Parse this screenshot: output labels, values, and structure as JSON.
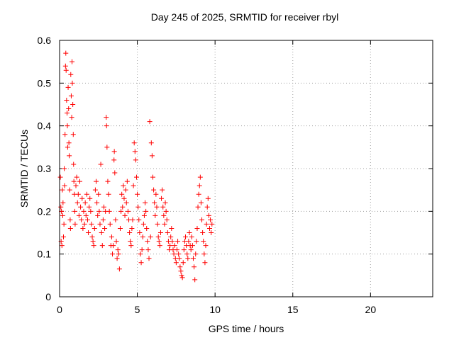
{
  "chart_data": {
    "type": "scatter",
    "title": "Day 245 of 2025, SRMTID for receiver rbyl",
    "xlabel": "GPS time / hours",
    "ylabel": "SRMTID / TECUs",
    "xlim": [
      0,
      24
    ],
    "ylim": [
      0,
      0.6
    ],
    "xticks": [
      0,
      5,
      10,
      15,
      20
    ],
    "yticks": [
      0,
      0.1,
      0.2,
      0.3,
      0.4,
      0.5,
      0.6
    ],
    "grid": true,
    "marker": "+",
    "series": [
      {
        "name": "SRMTID",
        "color": "#ff0000",
        "points": [
          [
            0.05,
            0.28
          ],
          [
            0.08,
            0.21
          ],
          [
            0.1,
            0.13
          ],
          [
            0.12,
            0.2
          ],
          [
            0.15,
            0.12
          ],
          [
            0.18,
            0.25
          ],
          [
            0.2,
            0.19
          ],
          [
            0.22,
            0.22
          ],
          [
            0.25,
            0.14
          ],
          [
            0.28,
            0.17
          ],
          [
            0.3,
            0.3
          ],
          [
            0.32,
            0.26
          ],
          [
            0.35,
            0.38
          ],
          [
            0.38,
            0.54
          ],
          [
            0.4,
            0.57
          ],
          [
            0.42,
            0.53
          ],
          [
            0.45,
            0.46
          ],
          [
            0.48,
            0.43
          ],
          [
            0.5,
            0.4
          ],
          [
            0.52,
            0.35
          ],
          [
            0.55,
            0.49
          ],
          [
            0.58,
            0.44
          ],
          [
            0.6,
            0.36
          ],
          [
            0.62,
            0.33
          ],
          [
            0.65,
            0.25
          ],
          [
            0.68,
            0.18
          ],
          [
            0.7,
            0.16
          ],
          [
            0.72,
            0.52
          ],
          [
            0.75,
            0.47
          ],
          [
            0.78,
            0.42
          ],
          [
            0.8,
            0.55
          ],
          [
            0.82,
            0.5
          ],
          [
            0.85,
            0.45
          ],
          [
            0.88,
            0.38
          ],
          [
            0.9,
            0.31
          ],
          [
            0.92,
            0.27
          ],
          [
            0.95,
            0.24
          ],
          [
            0.98,
            0.2
          ],
          [
            1.0,
            0.17
          ],
          [
            1.05,
            0.26
          ],
          [
            1.1,
            0.28
          ],
          [
            1.15,
            0.22
          ],
          [
            1.2,
            0.24
          ],
          [
            1.25,
            0.19
          ],
          [
            1.3,
            0.27
          ],
          [
            1.35,
            0.21
          ],
          [
            1.4,
            0.18
          ],
          [
            1.45,
            0.23
          ],
          [
            1.5,
            0.16
          ],
          [
            1.55,
            0.2
          ],
          [
            1.6,
            0.17
          ],
          [
            1.65,
            0.22
          ],
          [
            1.7,
            0.19
          ],
          [
            1.75,
            0.24
          ],
          [
            1.8,
            0.18
          ],
          [
            1.85,
            0.15
          ],
          [
            1.9,
            0.21
          ],
          [
            1.95,
            0.23
          ],
          [
            2.0,
            0.2
          ],
          [
            2.05,
            0.17
          ],
          [
            2.1,
            0.14
          ],
          [
            2.15,
            0.13
          ],
          [
            2.2,
            0.12
          ],
          [
            2.25,
            0.16
          ],
          [
            2.3,
            0.25
          ],
          [
            2.35,
            0.27
          ],
          [
            2.4,
            0.22
          ],
          [
            2.45,
            0.19
          ],
          [
            2.5,
            0.24
          ],
          [
            2.55,
            0.2
          ],
          [
            2.6,
            0.17
          ],
          [
            2.65,
            0.31
          ],
          [
            2.7,
            0.15
          ],
          [
            2.75,
            0.12
          ],
          [
            2.8,
            0.18
          ],
          [
            2.85,
            0.21
          ],
          [
            2.9,
            0.16
          ],
          [
            2.95,
            0.2
          ],
          [
            3.0,
            0.42
          ],
          [
            3.02,
            0.4
          ],
          [
            3.05,
            0.35
          ],
          [
            3.1,
            0.27
          ],
          [
            3.15,
            0.24
          ],
          [
            3.2,
            0.2
          ],
          [
            3.25,
            0.17
          ],
          [
            3.3,
            0.12
          ],
          [
            3.35,
            0.14
          ],
          [
            3.4,
            0.1
          ],
          [
            3.45,
            0.12
          ],
          [
            3.5,
            0.32
          ],
          [
            3.52,
            0.34
          ],
          [
            3.55,
            0.29
          ],
          [
            3.6,
            0.18
          ],
          [
            3.65,
            0.13
          ],
          [
            3.7,
            0.09
          ],
          [
            3.75,
            0.11
          ],
          [
            3.8,
            0.1
          ],
          [
            3.85,
            0.065
          ],
          [
            3.9,
            0.16
          ],
          [
            3.95,
            0.2
          ],
          [
            4.0,
            0.24
          ],
          [
            4.05,
            0.21
          ],
          [
            4.1,
            0.26
          ],
          [
            4.15,
            0.23
          ],
          [
            4.2,
            0.19
          ],
          [
            4.25,
            0.25
          ],
          [
            4.3,
            0.22
          ],
          [
            4.35,
            0.27
          ],
          [
            4.4,
            0.2
          ],
          [
            4.45,
            0.18
          ],
          [
            4.5,
            0.15
          ],
          [
            4.55,
            0.13
          ],
          [
            4.6,
            0.12
          ],
          [
            4.65,
            0.16
          ],
          [
            4.7,
            0.18
          ],
          [
            4.75,
            0.26
          ],
          [
            4.8,
            0.36
          ],
          [
            4.85,
            0.34
          ],
          [
            4.9,
            0.32
          ],
          [
            4.95,
            0.28
          ],
          [
            5.0,
            0.24
          ],
          [
            5.05,
            0.21
          ],
          [
            5.1,
            0.18
          ],
          [
            5.15,
            0.15
          ],
          [
            5.2,
            0.1
          ],
          [
            5.25,
            0.08
          ],
          [
            5.3,
            0.11
          ],
          [
            5.35,
            0.14
          ],
          [
            5.4,
            0.17
          ],
          [
            5.45,
            0.19
          ],
          [
            5.5,
            0.22
          ],
          [
            5.55,
            0.2
          ],
          [
            5.6,
            0.16
          ],
          [
            5.65,
            0.13
          ],
          [
            5.7,
            0.11
          ],
          [
            5.75,
            0.09
          ],
          [
            5.8,
            0.41
          ],
          [
            5.85,
            0.14
          ],
          [
            5.9,
            0.36
          ],
          [
            5.95,
            0.33
          ],
          [
            6.0,
            0.28
          ],
          [
            6.05,
            0.25
          ],
          [
            6.1,
            0.22
          ],
          [
            6.15,
            0.19
          ],
          [
            6.2,
            0.24
          ],
          [
            6.25,
            0.21
          ],
          [
            6.3,
            0.17
          ],
          [
            6.35,
            0.14
          ],
          [
            6.4,
            0.13
          ],
          [
            6.45,
            0.12
          ],
          [
            6.5,
            0.15
          ],
          [
            6.55,
            0.23
          ],
          [
            6.6,
            0.25
          ],
          [
            6.65,
            0.21
          ],
          [
            6.7,
            0.19
          ],
          [
            6.75,
            0.17
          ],
          [
            6.8,
            0.22
          ],
          [
            6.85,
            0.2
          ],
          [
            6.9,
            0.18
          ],
          [
            6.95,
            0.15
          ],
          [
            7.0,
            0.13
          ],
          [
            7.05,
            0.11
          ],
          [
            7.1,
            0.12
          ],
          [
            7.15,
            0.14
          ],
          [
            7.2,
            0.16
          ],
          [
            7.25,
            0.13
          ],
          [
            7.3,
            0.11
          ],
          [
            7.35,
            0.1
          ],
          [
            7.4,
            0.12
          ],
          [
            7.45,
            0.09
          ],
          [
            7.5,
            0.08
          ],
          [
            7.55,
            0.11
          ],
          [
            7.6,
            0.13
          ],
          [
            7.65,
            0.1
          ],
          [
            7.7,
            0.09
          ],
          [
            7.75,
            0.07
          ],
          [
            7.8,
            0.06
          ],
          [
            7.85,
            0.05
          ],
          [
            7.9,
            0.045
          ],
          [
            7.95,
            0.08
          ],
          [
            8.0,
            0.11
          ],
          [
            8.05,
            0.13
          ],
          [
            8.1,
            0.14
          ],
          [
            8.15,
            0.12
          ],
          [
            8.2,
            0.1
          ],
          [
            8.25,
            0.09
          ],
          [
            8.3,
            0.13
          ],
          [
            8.35,
            0.15
          ],
          [
            8.4,
            0.12
          ],
          [
            8.45,
            0.11
          ],
          [
            8.5,
            0.14
          ],
          [
            8.55,
            0.12
          ],
          [
            8.6,
            0.09
          ],
          [
            8.65,
            0.07
          ],
          [
            8.7,
            0.04
          ],
          [
            8.75,
            0.1
          ],
          [
            8.8,
            0.13
          ],
          [
            8.85,
            0.16
          ],
          [
            8.9,
            0.21
          ],
          [
            8.95,
            0.24
          ],
          [
            9.0,
            0.26
          ],
          [
            9.05,
            0.28
          ],
          [
            9.1,
            0.22
          ],
          [
            9.15,
            0.18
          ],
          [
            9.2,
            0.15
          ],
          [
            9.25,
            0.13
          ],
          [
            9.3,
            0.1
          ],
          [
            9.35,
            0.08
          ],
          [
            9.4,
            0.12
          ],
          [
            9.45,
            0.17
          ],
          [
            9.5,
            0.21
          ],
          [
            9.55,
            0.23
          ],
          [
            9.6,
            0.19
          ],
          [
            9.65,
            0.16
          ],
          [
            9.7,
            0.18
          ],
          [
            9.75,
            0.15
          ],
          [
            9.8,
            0.17
          ]
        ]
      }
    ]
  }
}
